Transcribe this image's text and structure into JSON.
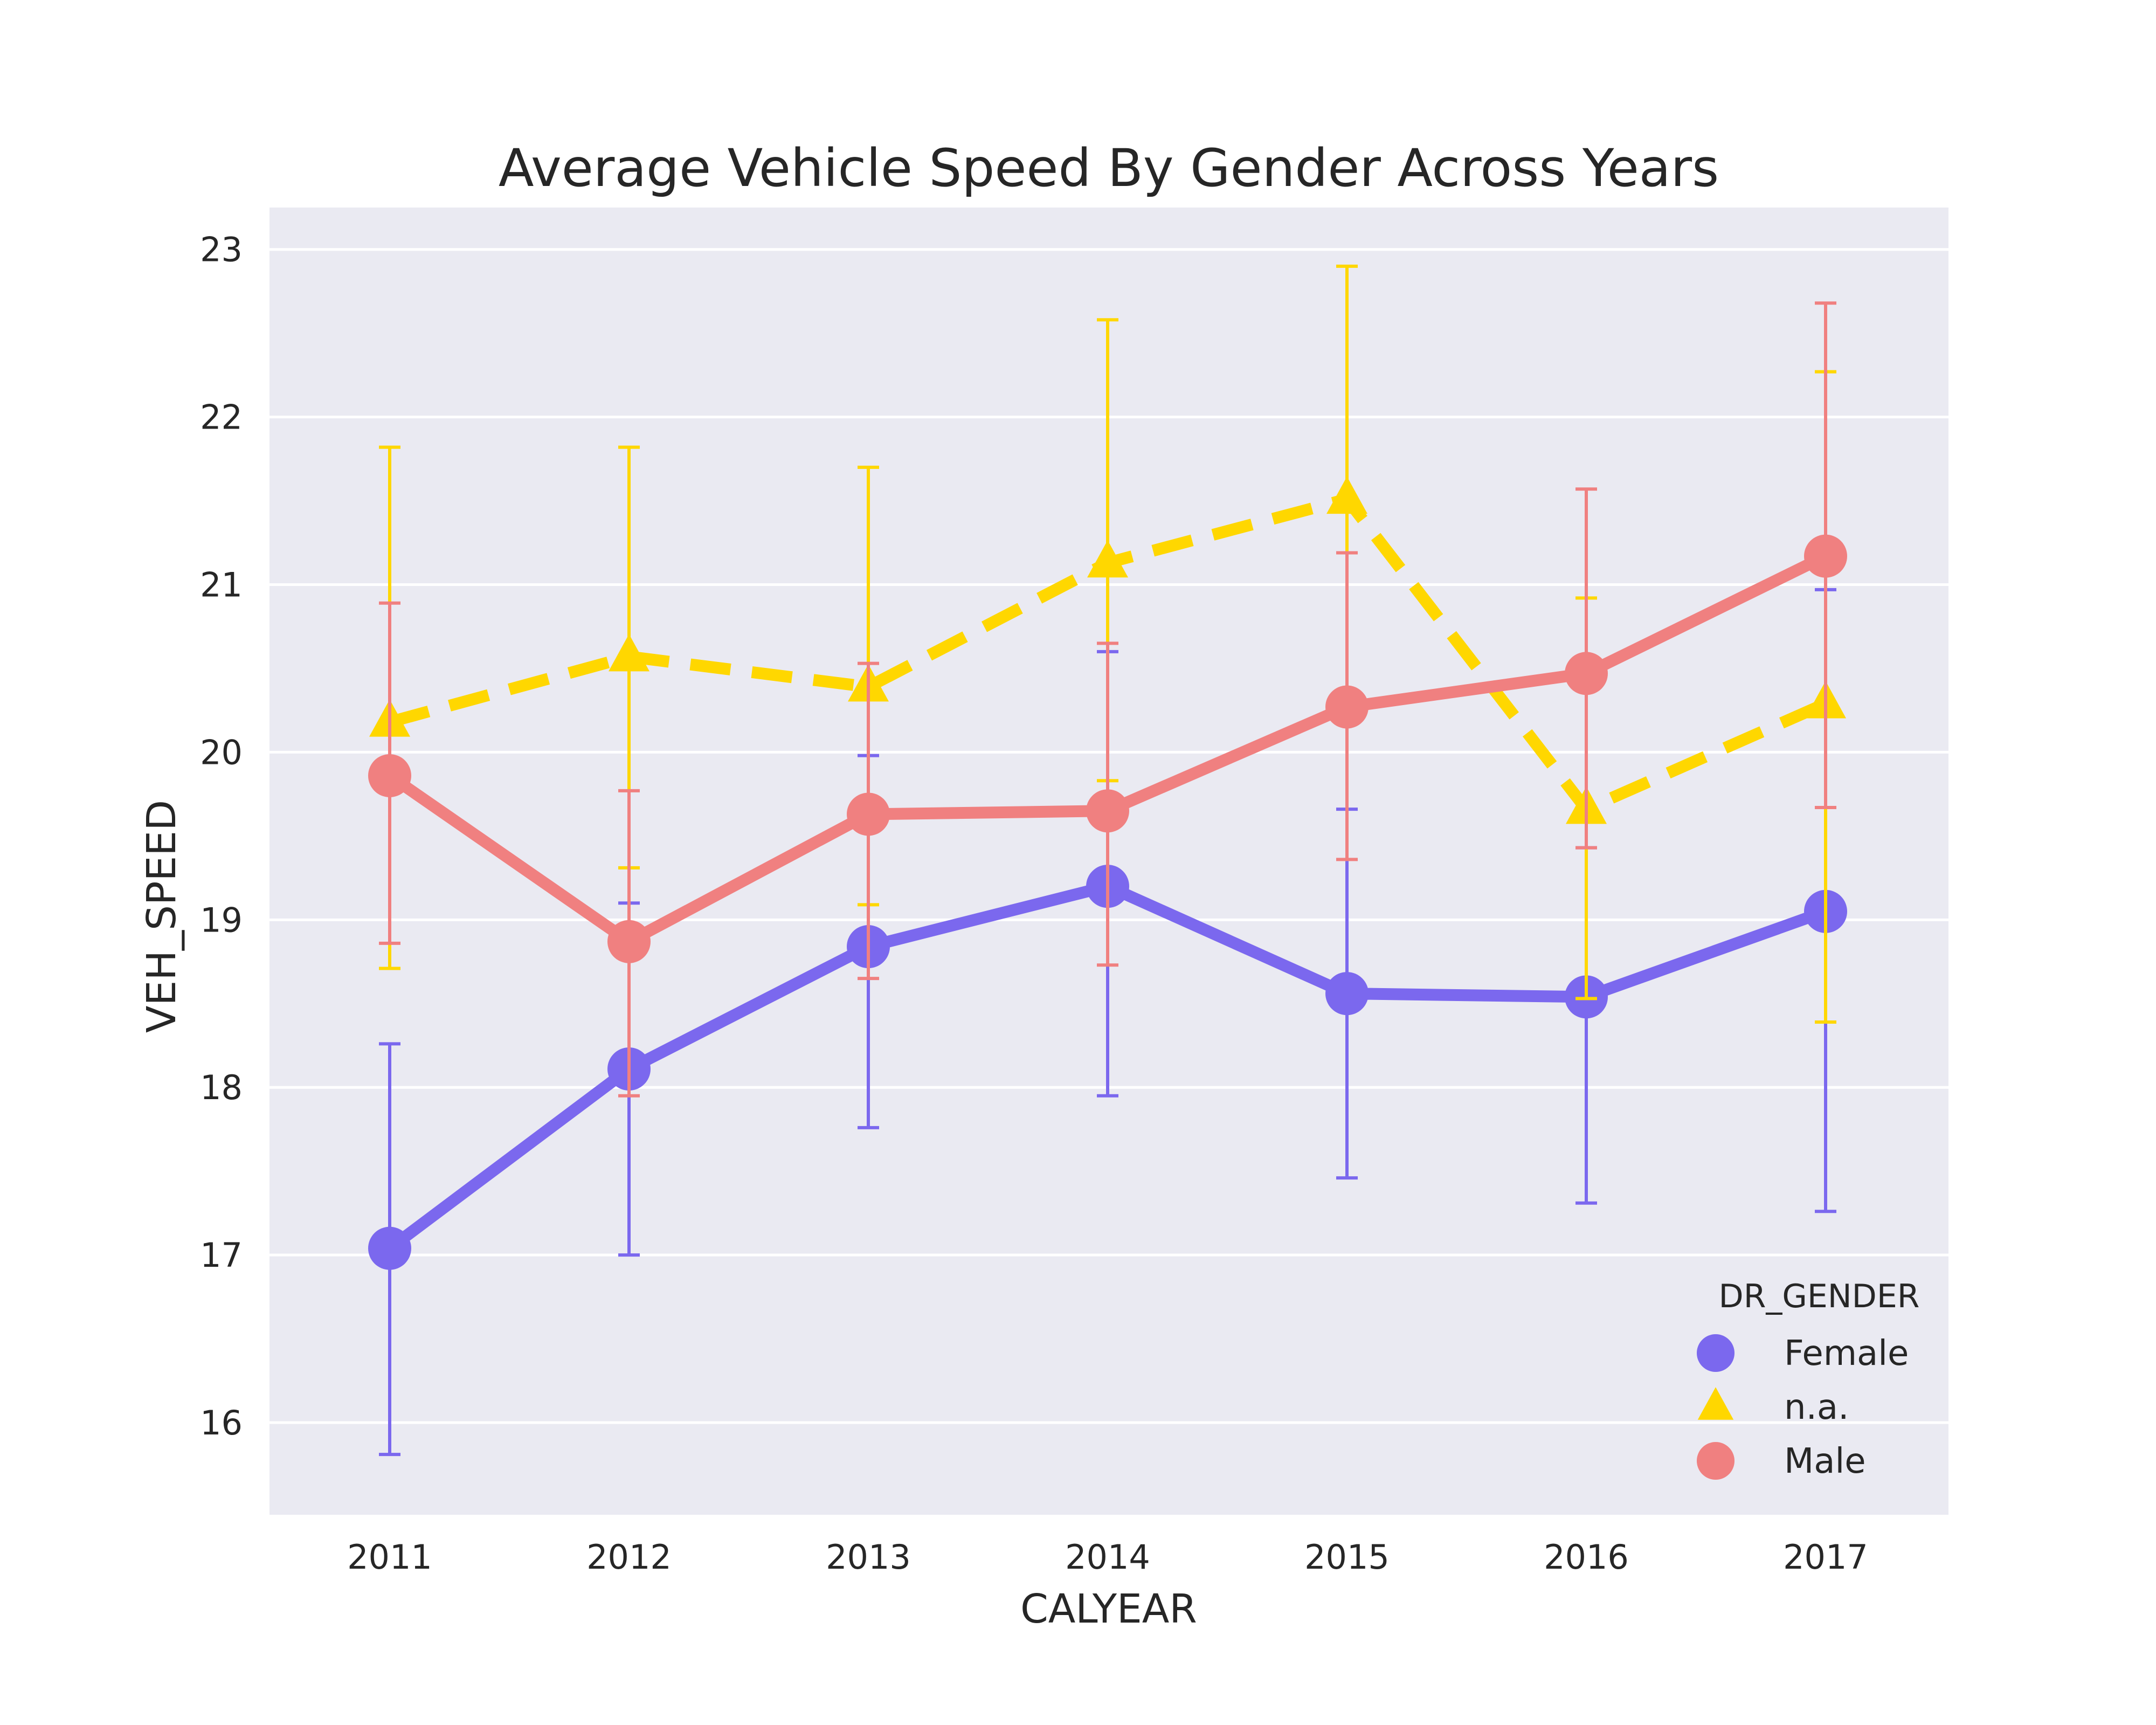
{
  "chart_data": {
    "type": "line",
    "title": "Average Vehicle Speed By Gender Across Years",
    "xlabel": "CALYEAR",
    "ylabel": "VEH_SPEED",
    "categories": [
      "2011",
      "2012",
      "2013",
      "2014",
      "2015",
      "2016",
      "2017"
    ],
    "ylim": [
      15.45,
      23.25
    ],
    "yticks": [
      16,
      17,
      18,
      19,
      20,
      21,
      22,
      23
    ],
    "grid": true,
    "legend": {
      "title": "DR_GENDER",
      "placement": "bottom-right"
    },
    "series": [
      {
        "name": "Female",
        "color": "#7b68ee",
        "marker": "circle",
        "linestyle": "solid",
        "values": [
          17.04,
          18.11,
          18.84,
          19.2,
          18.56,
          18.54,
          19.05
        ],
        "err_low": [
          15.81,
          17.0,
          17.76,
          17.95,
          17.46,
          17.31,
          17.26
        ],
        "err_high": [
          18.26,
          19.1,
          19.98,
          20.6,
          19.66,
          19.43,
          20.97
        ]
      },
      {
        "name": "n.a.",
        "color": "#ffd700",
        "marker": "triangle",
        "linestyle": "dashed",
        "values": [
          20.18,
          20.57,
          20.39,
          21.13,
          21.51,
          19.66,
          20.29
        ],
        "err_low": [
          18.71,
          19.31,
          19.09,
          19.83,
          20.19,
          18.53,
          18.39
        ],
        "err_high": [
          21.82,
          21.82,
          21.7,
          22.58,
          22.9,
          20.92,
          22.27
        ]
      },
      {
        "name": "Male",
        "color": "#f08080",
        "marker": "circle",
        "linestyle": "solid",
        "values": [
          19.86,
          18.87,
          19.63,
          19.65,
          20.27,
          20.47,
          21.17
        ],
        "err_low": [
          18.86,
          17.95,
          18.65,
          18.73,
          19.36,
          19.43,
          19.67
        ],
        "err_high": [
          20.89,
          19.77,
          20.53,
          20.65,
          21.19,
          21.57,
          22.68
        ]
      }
    ]
  }
}
